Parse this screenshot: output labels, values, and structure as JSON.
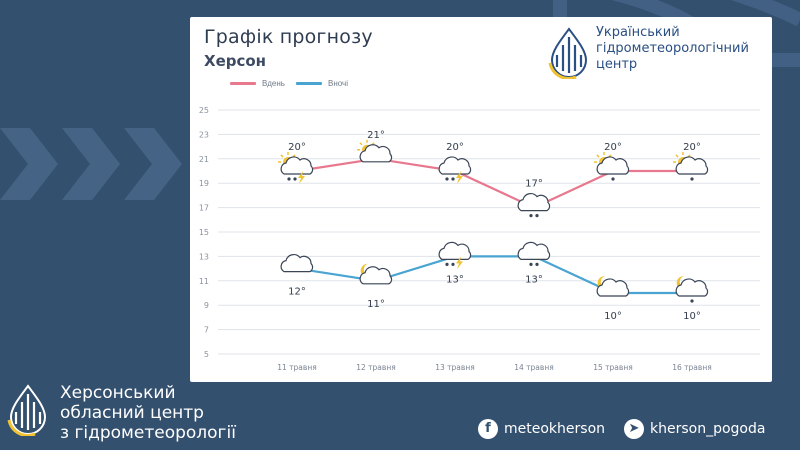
{
  "header": {
    "title": "Графік прогнозу",
    "city": "Херсон"
  },
  "logo": {
    "lines": [
      "Український",
      "гідрометеорологічний",
      "центр"
    ]
  },
  "footer": {
    "org_lines": [
      "Херсонський",
      "обласний центр",
      "з гідрометеорології"
    ],
    "facebook_handle": "meteokherson",
    "telegram_handle": "kherson_pogoda"
  },
  "colors": {
    "background": "#34506f",
    "day_series": "#e8788e",
    "night_series": "#4aa4d2",
    "accent_yellow": "#f1c232",
    "brand_blue": "#2a4f83"
  },
  "chart_data": {
    "type": "line",
    "categories": [
      "11 травня",
      "12 травня",
      "13 травня",
      "14 травня",
      "15 травня",
      "16 травня"
    ],
    "series": [
      {
        "name": "Вдень",
        "values": [
          20,
          21,
          20,
          17,
          20,
          20
        ],
        "labels": [
          "20°",
          "21°",
          "20°",
          "17°",
          "20°",
          "20°"
        ],
        "icons": [
          "partly-cloudy-thunder-rain-icon",
          "partly-cloudy-icon",
          "thunderstorm-rain-icon",
          "cloud-rain-icon",
          "partly-cloudy-rain-icon",
          "partly-cloudy-rain-icon"
        ]
      },
      {
        "name": "Вночі",
        "values": [
          12,
          11,
          13,
          13,
          10,
          10
        ],
        "labels": [
          "12°",
          "11°",
          "13°",
          "13°",
          "10°",
          "10°"
        ],
        "icons": [
          "cloud-icon",
          "night-partly-cloudy-icon",
          "thunderstorm-rain-icon",
          "cloud-rain-icon",
          "night-partly-cloudy-icon",
          "night-partly-cloudy-rain-icon"
        ]
      }
    ],
    "yticks": [
      5,
      7,
      9,
      11,
      13,
      15,
      17,
      19,
      21,
      23,
      25
    ],
    "ylim": [
      5,
      25
    ],
    "grid": true,
    "legend_position": "top-left"
  }
}
